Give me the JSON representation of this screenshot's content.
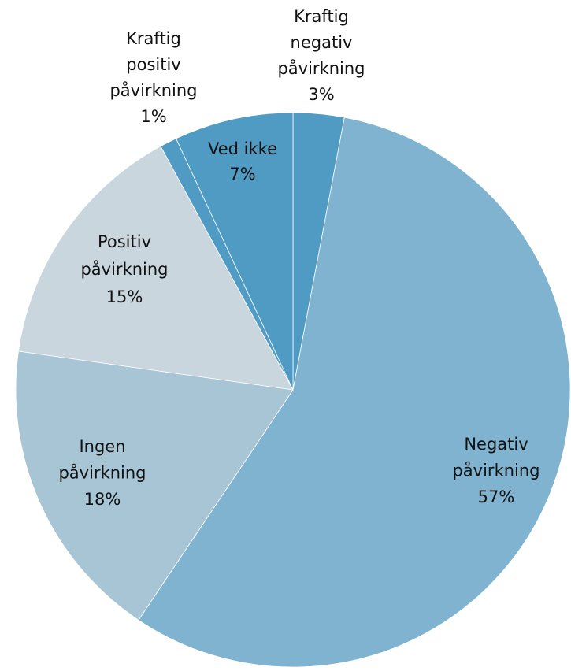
{
  "chart_data": {
    "type": "pie",
    "categories": [
      "Kraftig negativ påvirkning",
      "Negativ påvirkning",
      "Ingen påvirkning",
      "Positiv påvirkning",
      "Kraftig positiv påvirkning",
      "Ved ikke"
    ],
    "values": [
      3,
      57,
      18,
      15,
      1,
      7
    ],
    "value_labels": [
      "3%",
      "57%",
      "18%",
      "15%",
      "1%",
      "7%"
    ],
    "colors": [
      "#4f9bc4",
      "#7fb3d0",
      "#a8c5d6",
      "#cad6de",
      "#4f9bc4",
      "#4f9bc4"
    ]
  }
}
